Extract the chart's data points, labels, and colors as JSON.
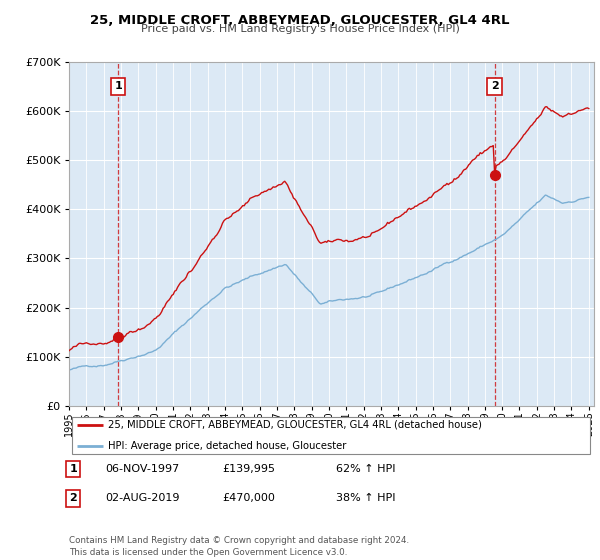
{
  "title": "25, MIDDLE CROFT, ABBEYMEAD, GLOUCESTER, GL4 4RL",
  "subtitle": "Price paid vs. HM Land Registry's House Price Index (HPI)",
  "legend_line1": "25, MIDDLE CROFT, ABBEYMEAD, GLOUCESTER, GL4 4RL (detached house)",
  "legend_line2": "HPI: Average price, detached house, Gloucester",
  "point1_date": "06-NOV-1997",
  "point1_price": "£139,995",
  "point1_hpi": "62% ↑ HPI",
  "point2_date": "02-AUG-2019",
  "point2_price": "£470,000",
  "point2_hpi": "38% ↑ HPI",
  "footer": "Contains HM Land Registry data © Crown copyright and database right 2024.\nThis data is licensed under the Open Government Licence v3.0.",
  "hpi_color": "#7bafd4",
  "price_color": "#cc1111",
  "point_color": "#cc1111",
  "bg_color": "#ffffff",
  "chart_bg": "#dce9f5",
  "grid_color": "#ffffff",
  "ylim_max": 700000,
  "xlim_min": 1995,
  "xlim_max": 2025
}
